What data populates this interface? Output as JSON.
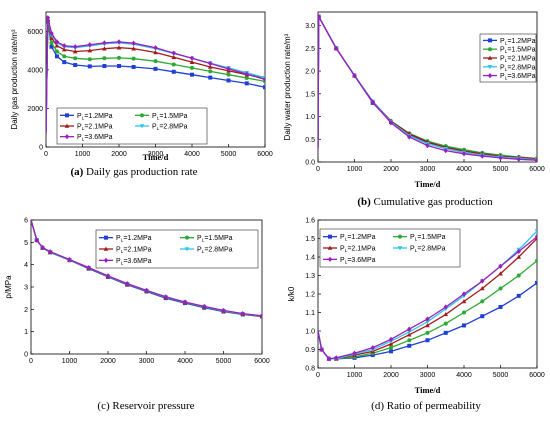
{
  "chart_data": [
    {
      "id": "a",
      "type": "line",
      "caption_letter": "(a)",
      "caption_text": "Daily gas production rate",
      "ylabel": "Daily gas production rate/m³",
      "xlabel": "Time/d",
      "xlim": [
        0,
        6000
      ],
      "ylim": [
        0,
        7000
      ],
      "xticks": [
        0,
        1000,
        2000,
        3000,
        4000,
        5000,
        6000
      ],
      "yticks": [
        0,
        2000,
        4000,
        6000
      ],
      "grid": false,
      "legend_placement": "bottom-left",
      "legend_cols": 2,
      "series": [
        {
          "name": "1.2MPa",
          "color": "#1f3fd6",
          "marker": "square",
          "x": [
            0,
            50,
            150,
            300,
            500,
            800,
            1200,
            1600,
            2000,
            2400,
            3000,
            3500,
            4000,
            4500,
            5000,
            5500,
            6000
          ],
          "y": [
            700,
            6500,
            5200,
            4700,
            4400,
            4250,
            4180,
            4200,
            4200,
            4150,
            4050,
            3900,
            3750,
            3600,
            3450,
            3300,
            3100
          ]
        },
        {
          "name": "1.5MPa",
          "color": "#2ea832",
          "marker": "circle",
          "x": [
            0,
            50,
            150,
            300,
            500,
            800,
            1200,
            1600,
            2000,
            2400,
            3000,
            3500,
            4000,
            4500,
            5000,
            5500,
            6000
          ],
          "y": [
            700,
            6550,
            5400,
            4950,
            4700,
            4600,
            4550,
            4600,
            4620,
            4580,
            4450,
            4280,
            4100,
            3920,
            3750,
            3580,
            3400
          ]
        },
        {
          "name": "2.1MPa",
          "color": "#a31a1a",
          "marker": "triangle",
          "x": [
            0,
            50,
            150,
            300,
            500,
            800,
            1200,
            1600,
            2000,
            2400,
            3000,
            3500,
            4000,
            4500,
            5000,
            5500,
            6000
          ],
          "y": [
            700,
            6600,
            5650,
            5250,
            5050,
            4950,
            5000,
            5100,
            5150,
            5100,
            4900,
            4650,
            4400,
            4150,
            3950,
            3750,
            3600
          ]
        },
        {
          "name": "2.8MPa",
          "color": "#2fc6e8",
          "marker": "triangle-down",
          "x": [
            0,
            50,
            150,
            300,
            500,
            800,
            1200,
            1600,
            2000,
            2400,
            3000,
            3500,
            4000,
            4500,
            5000,
            5500,
            6000
          ],
          "y": [
            700,
            6650,
            5800,
            5400,
            5200,
            5150,
            5250,
            5350,
            5400,
            5330,
            5100,
            4850,
            4600,
            4350,
            4100,
            3850,
            3600
          ]
        },
        {
          "name": "3.6MPa",
          "color": "#9a1fc0",
          "marker": "diamond",
          "x": [
            0,
            50,
            150,
            300,
            500,
            800,
            1200,
            1600,
            2000,
            2400,
            3000,
            3500,
            4000,
            4500,
            5000,
            5500,
            6000
          ],
          "y": [
            700,
            6700,
            5900,
            5450,
            5250,
            5200,
            5300,
            5400,
            5450,
            5380,
            5150,
            4870,
            4600,
            4330,
            4050,
            3780,
            3500
          ]
        }
      ]
    },
    {
      "id": "b",
      "type": "line",
      "caption_letter": "(b)",
      "caption_text": "Cumulative gas production",
      "ylabel": "Daily water production rate/m³",
      "xlabel": "Time/d",
      "xlim": [
        0,
        6000
      ],
      "ylim": [
        0,
        3.3
      ],
      "xticks": [
        0,
        1000,
        2000,
        3000,
        4000,
        5000,
        6000
      ],
      "yticks": [
        0.0,
        0.5,
        1.0,
        1.5,
        2.0,
        2.5,
        3.0
      ],
      "grid": false,
      "legend_placement": "top-right",
      "legend_cols": 1,
      "series": [
        {
          "name": "1.2MPa",
          "color": "#1f3fd6",
          "marker": "square",
          "x": [
            0,
            20,
            500,
            1000,
            1500,
            2000,
            2500,
            3000,
            3500,
            4000,
            4500,
            5000,
            5500,
            6000
          ],
          "y": [
            0.3,
            3.2,
            2.5,
            1.9,
            1.3,
            0.88,
            0.6,
            0.43,
            0.33,
            0.25,
            0.18,
            0.13,
            0.09,
            0.06
          ]
        },
        {
          "name": "1.5MPa",
          "color": "#2ea832",
          "marker": "circle",
          "x": [
            0,
            20,
            500,
            1000,
            1500,
            2000,
            2500,
            3000,
            3500,
            4000,
            4500,
            5000,
            5500,
            6000
          ],
          "y": [
            0.3,
            3.2,
            2.5,
            1.9,
            1.32,
            0.9,
            0.63,
            0.46,
            0.35,
            0.27,
            0.2,
            0.15,
            0.11,
            0.08
          ]
        },
        {
          "name": "2.1MPa",
          "color": "#a31a1a",
          "marker": "triangle",
          "x": [
            0,
            20,
            500,
            1000,
            1500,
            2000,
            2500,
            3000,
            3500,
            4000,
            4500,
            5000,
            5500,
            6000
          ],
          "y": [
            0.3,
            3.2,
            2.5,
            1.9,
            1.33,
            0.9,
            0.62,
            0.44,
            0.32,
            0.24,
            0.18,
            0.13,
            0.1,
            0.07
          ]
        },
        {
          "name": "2.8MPa",
          "color": "#2fc6e8",
          "marker": "triangle-down",
          "x": [
            0,
            20,
            500,
            1000,
            1500,
            2000,
            2500,
            3000,
            3500,
            4000,
            4500,
            5000,
            5500,
            6000
          ],
          "y": [
            0.3,
            3.2,
            2.5,
            1.9,
            1.33,
            0.88,
            0.58,
            0.4,
            0.29,
            0.21,
            0.15,
            0.11,
            0.08,
            0.05
          ]
        },
        {
          "name": "3.6MPa",
          "color": "#9a1fc0",
          "marker": "diamond",
          "x": [
            0,
            20,
            500,
            1000,
            1500,
            2000,
            2500,
            3000,
            3500,
            4000,
            4500,
            5000,
            5500,
            6000
          ],
          "y": [
            0.3,
            3.2,
            2.5,
            1.9,
            1.32,
            0.86,
            0.55,
            0.36,
            0.25,
            0.18,
            0.13,
            0.09,
            0.06,
            0.04
          ]
        }
      ]
    },
    {
      "id": "c",
      "type": "line",
      "caption_letter": "(c)",
      "caption_text": "Reservoir pressure",
      "ylabel": "p/MPa",
      "xlabel": "",
      "xlim": [
        0,
        6000
      ],
      "ylim": [
        0,
        6
      ],
      "xticks": [
        0,
        1000,
        2000,
        3000,
        4000,
        5000,
        6000
      ],
      "yticks": [
        0,
        1,
        2,
        3,
        4,
        5,
        6
      ],
      "grid": false,
      "legend_placement": "top-right",
      "legend_cols": 2,
      "series": [
        {
          "name": "1.2MPa",
          "color": "#1f3fd6",
          "marker": "square",
          "x": [
            0,
            150,
            300,
            500,
            1000,
            1500,
            2000,
            2500,
            3000,
            3500,
            4000,
            4500,
            5000,
            5500,
            6000
          ],
          "y": [
            6.0,
            5.1,
            4.75,
            4.55,
            4.2,
            3.82,
            3.45,
            3.1,
            2.8,
            2.5,
            2.28,
            2.07,
            1.9,
            1.77,
            1.68
          ]
        },
        {
          "name": "1.5MPa",
          "color": "#2ea832",
          "marker": "circle",
          "x": [
            0,
            150,
            300,
            500,
            1000,
            1500,
            2000,
            2500,
            3000,
            3500,
            4000,
            4500,
            5000,
            5500,
            6000
          ],
          "y": [
            6.0,
            5.1,
            4.75,
            4.56,
            4.21,
            3.84,
            3.47,
            3.12,
            2.82,
            2.53,
            2.3,
            2.1,
            1.92,
            1.78,
            1.68
          ]
        },
        {
          "name": "2.1MPa",
          "color": "#a31a1a",
          "marker": "triangle",
          "x": [
            0,
            150,
            300,
            500,
            1000,
            1500,
            2000,
            2500,
            3000,
            3500,
            4000,
            4500,
            5000,
            5500,
            6000
          ],
          "y": [
            6.0,
            5.1,
            4.76,
            4.57,
            4.22,
            3.85,
            3.48,
            3.13,
            2.83,
            2.54,
            2.31,
            2.11,
            1.93,
            1.79,
            1.69
          ]
        },
        {
          "name": "2.8MPa",
          "color": "#2fc6e8",
          "marker": "triangle-down",
          "x": [
            0,
            150,
            300,
            500,
            1000,
            1500,
            2000,
            2500,
            3000,
            3500,
            4000,
            4500,
            5000,
            5500,
            6000
          ],
          "y": [
            6.0,
            5.1,
            4.76,
            4.57,
            4.22,
            3.86,
            3.49,
            3.14,
            2.84,
            2.55,
            2.32,
            2.12,
            1.94,
            1.8,
            1.7
          ]
        },
        {
          "name": "3.6MPa",
          "color": "#9a1fc0",
          "marker": "diamond",
          "x": [
            0,
            150,
            300,
            500,
            1000,
            1500,
            2000,
            2500,
            3000,
            3500,
            4000,
            4500,
            5000,
            5500,
            6000
          ],
          "y": [
            6.0,
            5.1,
            4.77,
            4.58,
            4.23,
            3.87,
            3.5,
            3.15,
            2.85,
            2.56,
            2.33,
            2.13,
            1.95,
            1.81,
            1.71
          ]
        }
      ]
    },
    {
      "id": "d",
      "type": "line",
      "caption_letter": "(d)",
      "caption_text": "Ratio of permeability",
      "ylabel": "k/k0",
      "xlabel": "Time/d",
      "xlim": [
        0,
        6000
      ],
      "ylim": [
        0.8,
        1.6
      ],
      "xticks": [
        0,
        1000,
        2000,
        3000,
        4000,
        5000,
        6000
      ],
      "yticks": [
        0.8,
        0.9,
        1.0,
        1.1,
        1.2,
        1.3,
        1.4,
        1.5,
        1.6
      ],
      "grid": false,
      "legend_placement": "top-left",
      "legend_cols": 2,
      "series": [
        {
          "name": "1.2MPa",
          "color": "#1f3fd6",
          "marker": "square",
          "x": [
            0,
            100,
            300,
            500,
            1000,
            1500,
            2000,
            2500,
            3000,
            3500,
            4000,
            4500,
            5000,
            5500,
            6000
          ],
          "y": [
            1.0,
            0.9,
            0.85,
            0.85,
            0.855,
            0.87,
            0.89,
            0.92,
            0.95,
            0.99,
            1.03,
            1.08,
            1.13,
            1.19,
            1.26
          ]
        },
        {
          "name": "1.5MPa",
          "color": "#2ea832",
          "marker": "circle",
          "x": [
            0,
            100,
            300,
            500,
            1000,
            1500,
            2000,
            2500,
            3000,
            3500,
            4000,
            4500,
            5000,
            5500,
            6000
          ],
          "y": [
            1.0,
            0.9,
            0.85,
            0.85,
            0.86,
            0.88,
            0.91,
            0.95,
            0.99,
            1.04,
            1.1,
            1.16,
            1.23,
            1.3,
            1.38
          ]
        },
        {
          "name": "2.1MPa",
          "color": "#a31a1a",
          "marker": "triangle",
          "x": [
            0,
            100,
            300,
            500,
            1000,
            1500,
            2000,
            2500,
            3000,
            3500,
            4000,
            4500,
            5000,
            5500,
            6000
          ],
          "y": [
            1.0,
            0.9,
            0.85,
            0.85,
            0.87,
            0.89,
            0.93,
            0.98,
            1.03,
            1.09,
            1.16,
            1.23,
            1.31,
            1.4,
            1.5
          ]
        },
        {
          "name": "2.8MPa",
          "color": "#2fc6e8",
          "marker": "triangle-down",
          "x": [
            0,
            100,
            300,
            500,
            1000,
            1500,
            2000,
            2500,
            3000,
            3500,
            4000,
            4500,
            5000,
            5500,
            6000
          ],
          "y": [
            1.0,
            0.9,
            0.85,
            0.85,
            0.875,
            0.9,
            0.945,
            0.995,
            1.05,
            1.12,
            1.19,
            1.27,
            1.35,
            1.44,
            1.54
          ]
        },
        {
          "name": "3.6MPa",
          "color": "#9a1fc0",
          "marker": "diamond",
          "x": [
            0,
            100,
            300,
            500,
            1000,
            1500,
            2000,
            2500,
            3000,
            3500,
            4000,
            4500,
            5000,
            5500,
            6000
          ],
          "y": [
            1.0,
            0.9,
            0.85,
            0.855,
            0.88,
            0.91,
            0.955,
            1.01,
            1.065,
            1.13,
            1.2,
            1.27,
            1.35,
            1.43,
            1.51
          ]
        }
      ]
    }
  ],
  "legend_prefix": "P",
  "legend_subscript": "L",
  "legend_equals": "="
}
